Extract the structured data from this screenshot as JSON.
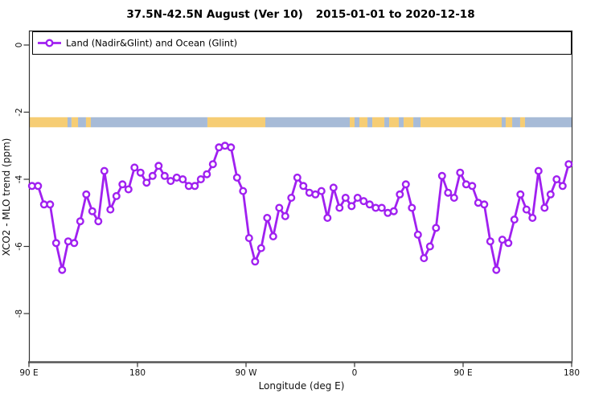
{
  "title": {
    "part1": "37.5N-42.5N August (Ver 10)",
    "part2": "2015-01-01 to 2020-12-18"
  },
  "legend": {
    "label": "Land (Nadir&Glint) and Ocean (Glint)",
    "marker": "open-circle-on-line"
  },
  "axes": {
    "x": {
      "label": "Longitude (deg E)",
      "ticks": [
        {
          "lon": 90,
          "label": "90 E"
        },
        {
          "lon": 180,
          "label": "180"
        },
        {
          "lon": 270,
          "label": "90 W"
        },
        {
          "lon": 360,
          "label": "0"
        },
        {
          "lon": 450,
          "label": "90 E"
        },
        {
          "lon": 540,
          "label": "180"
        }
      ]
    },
    "y": {
      "label": "XCO2 - MLO trend (ppm)",
      "ticks": [
        {
          "value": 0,
          "label": "0"
        },
        {
          "value": -2,
          "label": "-2"
        },
        {
          "value": -4,
          "label": "-4"
        },
        {
          "value": -6,
          "label": "-6"
        },
        {
          "value": -8,
          "label": "-8"
        }
      ]
    }
  },
  "colors": {
    "series": "#A020F0",
    "land": "#F6CD74",
    "ocean": "#A7BBD7",
    "frame": "#333333",
    "axis_line": "#555555"
  },
  "map_band": {
    "description": "geography strip: land/ocean along latitude band",
    "top_value": -2.15,
    "bottom_value": -2.45,
    "segments": [
      {
        "from": 90,
        "to": 122,
        "surface": "land"
      },
      {
        "from": 122,
        "to": 125.3,
        "surface": "ocean"
      },
      {
        "from": 125.3,
        "to": 130.7,
        "surface": "land"
      },
      {
        "from": 130.7,
        "to": 137.3,
        "surface": "ocean"
      },
      {
        "from": 137.3,
        "to": 141.3,
        "surface": "land"
      },
      {
        "from": 141.3,
        "to": 238,
        "surface": "ocean"
      },
      {
        "from": 238,
        "to": 286,
        "surface": "land"
      },
      {
        "from": 286,
        "to": 356,
        "surface": "ocean"
      },
      {
        "from": 356,
        "to": 360,
        "surface": "land"
      },
      {
        "from": 360,
        "to": 364,
        "surface": "ocean"
      },
      {
        "from": 364,
        "to": 370.7,
        "surface": "land"
      },
      {
        "from": 370.7,
        "to": 374.7,
        "surface": "ocean"
      },
      {
        "from": 374.7,
        "to": 384.7,
        "surface": "land"
      },
      {
        "from": 384.7,
        "to": 388.7,
        "surface": "ocean"
      },
      {
        "from": 388.7,
        "to": 396.7,
        "surface": "land"
      },
      {
        "from": 396.7,
        "to": 400.7,
        "surface": "ocean"
      },
      {
        "from": 400.7,
        "to": 408.7,
        "surface": "land"
      },
      {
        "from": 408.7,
        "to": 414.7,
        "surface": "ocean"
      },
      {
        "from": 414.7,
        "to": 482,
        "surface": "land"
      },
      {
        "from": 482,
        "to": 485.3,
        "surface": "ocean"
      },
      {
        "from": 485.3,
        "to": 490.7,
        "surface": "land"
      },
      {
        "from": 490.7,
        "to": 497.3,
        "surface": "ocean"
      },
      {
        "from": 497.3,
        "to": 501.3,
        "surface": "land"
      },
      {
        "from": 501.3,
        "to": 540,
        "surface": "ocean"
      }
    ]
  },
  "chart_data": {
    "type": "line",
    "title": "37.5N-42.5N August (Ver 10)   2015-01-01 to 2020-12-18",
    "xlabel": "Longitude (deg E)",
    "ylabel": "XCO2 - MLO trend (ppm)",
    "xlim": [
      90,
      540
    ],
    "ylim": [
      -9.45,
      0.45
    ],
    "grid": false,
    "legend_position": "top-left",
    "series": [
      {
        "name": "Land (Nadir&Glint) and Ocean (Glint)",
        "marker": "open-circle",
        "x": [
          92.5,
          97.5,
          102.5,
          107.5,
          112.5,
          117.5,
          122.5,
          127.5,
          132.5,
          137.5,
          142.5,
          147.5,
          152.5,
          157.5,
          162.5,
          167.5,
          172.5,
          177.5,
          182.5,
          187.5,
          192.5,
          197.5,
          202.5,
          207.5,
          212.5,
          217.5,
          222.5,
          227.5,
          232.5,
          237.5,
          242.5,
          247.5,
          252.5,
          257.5,
          262.5,
          267.5,
          272.5,
          277.5,
          282.5,
          287.5,
          292.5,
          297.5,
          302.5,
          307.5,
          312.5,
          317.5,
          322.5,
          327.5,
          332.5,
          337.5,
          342.5,
          347.5,
          352.5,
          357.5,
          362.5,
          367.5,
          372.5,
          377.5,
          382.5,
          387.5,
          392.5,
          397.5,
          402.5,
          407.5,
          412.5,
          417.5,
          422.5,
          427.5,
          432.5,
          437.5,
          442.5,
          447.5,
          452.5,
          457.5,
          462.5,
          467.5,
          472.5,
          477.5,
          482.5,
          487.5,
          492.5,
          497.5,
          502.5,
          507.5,
          512.5,
          517.5,
          522.5,
          527.5,
          532.5,
          537.5
        ],
        "values": [
          -4.2,
          -4.2,
          -4.75,
          -4.75,
          -5.9,
          -6.7,
          -5.85,
          -5.9,
          -5.25,
          -4.45,
          -4.95,
          -5.25,
          -3.75,
          -4.9,
          -4.5,
          -4.15,
          -4.3,
          -3.65,
          -3.8,
          -4.1,
          -3.9,
          -3.6,
          -3.9,
          -4.05,
          -3.95,
          -4.0,
          -4.2,
          -4.2,
          -4.0,
          -3.85,
          -3.55,
          -3.05,
          -3.0,
          -3.05,
          -3.95,
          -4.35,
          -5.75,
          -6.45,
          -6.05,
          -5.15,
          -5.7,
          -4.85,
          -5.1,
          -4.55,
          -3.95,
          -4.2,
          -4.4,
          -4.45,
          -4.35,
          -5.15,
          -4.25,
          -4.85,
          -4.55,
          -4.8,
          -4.55,
          -4.65,
          -4.75,
          -4.85,
          -4.85,
          -5.0,
          -4.95,
          -4.45,
          -4.15,
          -4.85,
          -5.65,
          -6.35,
          -6.0,
          -5.45,
          -3.9,
          -4.4,
          -4.55,
          -3.8,
          -4.15,
          -4.2,
          -4.7,
          -4.75,
          -5.85,
          -6.7,
          -5.8,
          -5.9,
          -5.2,
          -4.45,
          -4.9,
          -5.15,
          -3.75,
          -4.85,
          -4.45,
          -4.0,
          -4.2,
          -3.55
        ]
      }
    ]
  }
}
